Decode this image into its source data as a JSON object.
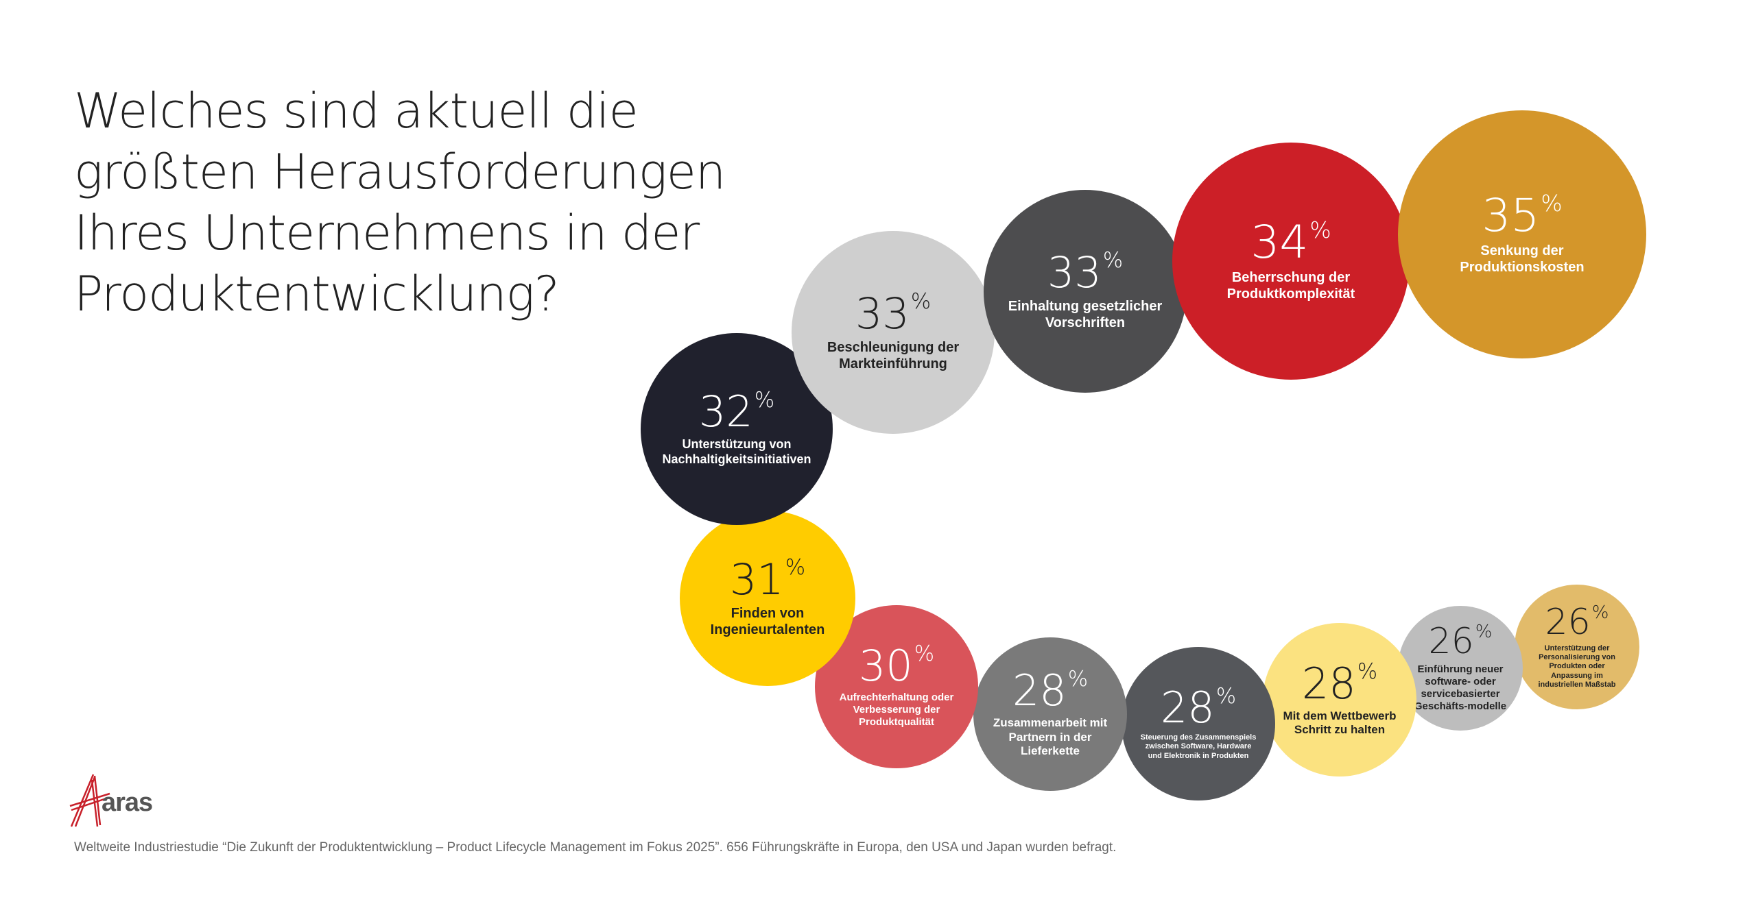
{
  "title": "Welches sind aktuell die größten Herausforderungen Ihres Unternehmens in der Produktentwicklung?",
  "logo_text": "aras",
  "footer": "Weltweite Industriestudie “Die Zukunft der Produktentwicklung – Product Lifecycle Management im Fokus 2025”. 656 Führungskräfte in Europa, den USA und Japan wurden befragt.",
  "chart_data": {
    "type": "bubble",
    "title": "Welches sind aktuell die größten Herausforderungen Ihres Unternehmens in der Produktentwicklung?",
    "unit": "%",
    "items": [
      {
        "label": "Senkung der Produktionskosten",
        "value": 35,
        "color": "#D4962A",
        "text_color": "#ffffff"
      },
      {
        "label": "Beherrschung der Produktkomplexität",
        "value": 34,
        "color": "#CC1F27",
        "text_color": "#ffffff"
      },
      {
        "label": "Einhaltung gesetzlicher Vorschriften",
        "value": 33,
        "color": "#4D4D4F",
        "text_color": "#ffffff"
      },
      {
        "label": "Beschleunigung der Markteinführung",
        "value": 33,
        "color": "#CFCFCF",
        "text_color": "#222222"
      },
      {
        "label": "Unterstützung von Nachhaltigkeitsinitiativen",
        "value": 32,
        "color": "#20212D",
        "text_color": "#ffffff"
      },
      {
        "label": "Finden von Ingenieurtalenten",
        "value": 31,
        "color": "#FFCC00",
        "text_color": "#222222"
      },
      {
        "label": "Aufrechterhaltung oder Verbesserung der Produktqualität",
        "value": 30,
        "color": "#D9545A",
        "text_color": "#ffffff"
      },
      {
        "label": "Zusammenarbeit mit Partnern in der Lieferkette",
        "value": 28,
        "color": "#7A7A7A",
        "text_color": "#ffffff"
      },
      {
        "label": "Steuerung des Zusammenspiels zwischen Software, Hardware und Elektronik in Produkten",
        "value": 28,
        "color": "#55575B",
        "text_color": "#ffffff"
      },
      {
        "label": "Mit dem Wettbewerb Schritt zu halten",
        "value": 28,
        "color": "#FBE280",
        "text_color": "#222222"
      },
      {
        "label": "Einführung neuer software- oder servicebasierter Geschäfts-modelle",
        "value": 26,
        "color": "#BDBDBD",
        "text_color": "#222222"
      },
      {
        "label": "Unterstützung der Personalisierung von Produkten oder Anpassung im industriellen Maßstab",
        "value": 26,
        "color": "#E2BB6A",
        "text_color": "#222222"
      }
    ]
  }
}
